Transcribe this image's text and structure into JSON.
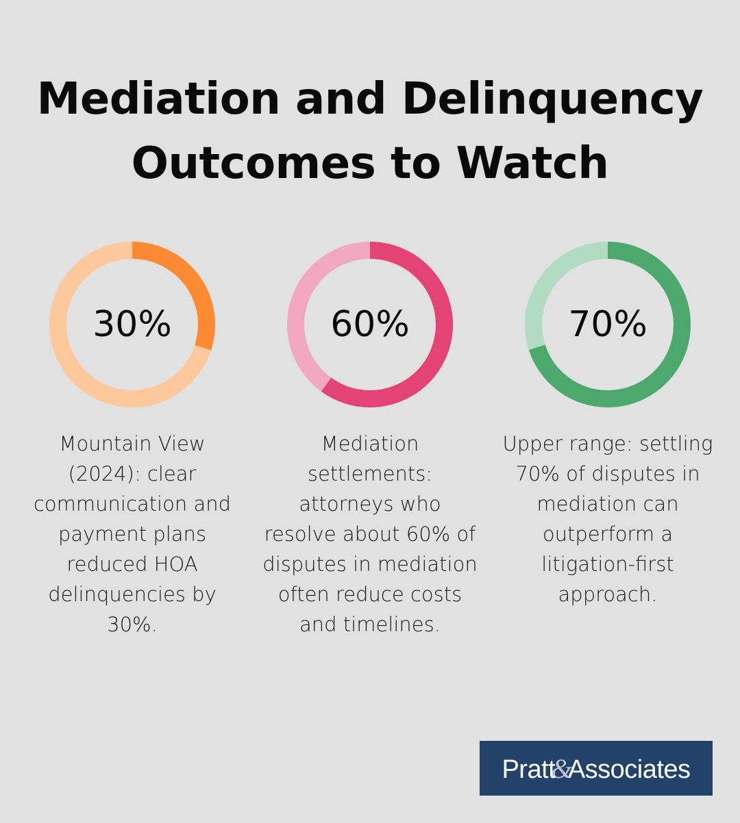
{
  "title": {
    "line1": "Mediation and Delinquency",
    "line2": "Outcomes to Watch"
  },
  "chart_data": {
    "type": "donut",
    "stats": [
      {
        "value": 30,
        "label": "30%",
        "caption": "Mountain View (2024): clear communication and payment plans reduced HOA delinquencies by 30%.",
        "fill_color": "#fb8a33",
        "track_color": "#fec89d"
      },
      {
        "value": 60,
        "label": "60%",
        "caption": "Mediation settlements: attorneys who resolve about 60% of disputes in mediation often reduce costs and timelines.",
        "fill_color": "#e44377",
        "track_color": "#f2a8c0"
      },
      {
        "value": 70,
        "label": "70%",
        "caption": "Upper range: settling 70% of disputes in mediation can outperform a litigation-first approach.",
        "fill_color": "#4ca86c",
        "track_color": "#b1dcc1"
      }
    ]
  },
  "logo": {
    "left": "Pratt",
    "amp": "&",
    "right": "Associates"
  }
}
